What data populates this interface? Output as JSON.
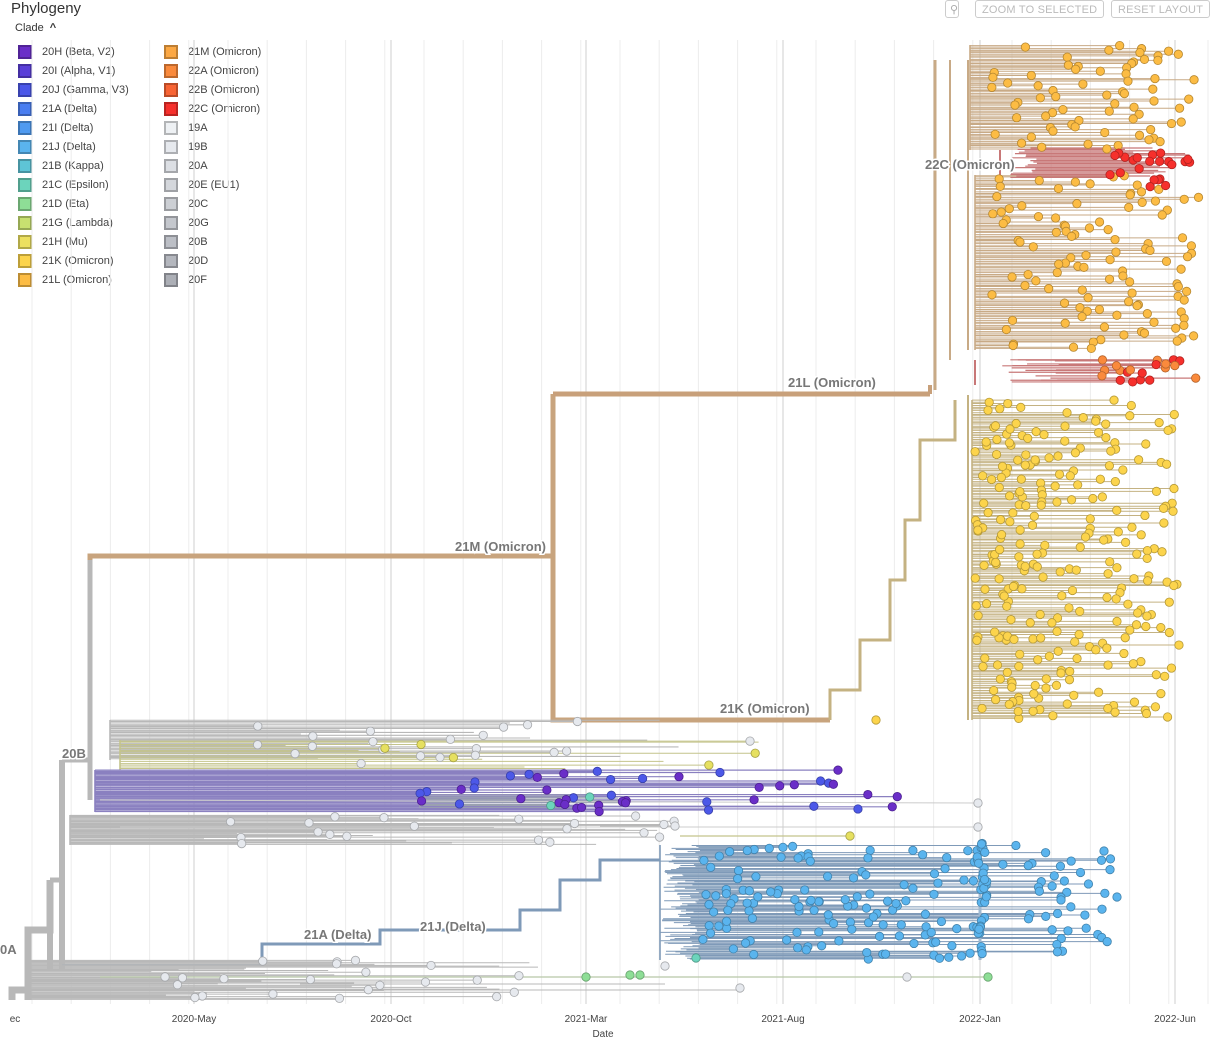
{
  "panel": {
    "title": "Phylogeny",
    "clade_toggle_label": "Clade"
  },
  "toolbar": {
    "zoom_icon": "magnifier-icon",
    "zoom_selected": "ZOOM TO SELECTED",
    "reset_layout": "RESET LAYOUT"
  },
  "legend": [
    {
      "label": "20H (Beta, V2)",
      "color": "#6a2ec8"
    },
    {
      "label": "20I (Alpha, V1)",
      "color": "#5a3fd8"
    },
    {
      "label": "20J (Gamma, V3)",
      "color": "#4c58e8"
    },
    {
      "label": "21A (Delta)",
      "color": "#4a7ef0"
    },
    {
      "label": "21I (Delta)",
      "color": "#4f9af0"
    },
    {
      "label": "21J (Delta)",
      "color": "#5ab4ee"
    },
    {
      "label": "21B (Kappa)",
      "color": "#5ec4d6"
    },
    {
      "label": "21C (Epsilon)",
      "color": "#6cd4bc"
    },
    {
      "label": "21D (Eta)",
      "color": "#8ede96"
    },
    {
      "label": "21G (Lambda)",
      "color": "#c8e070"
    },
    {
      "label": "21H (Mu)",
      "color": "#ece060"
    },
    {
      "label": "21K (Omicron)",
      "color": "#fcd44c"
    },
    {
      "label": "21L (Omicron)",
      "color": "#fcbc44"
    },
    {
      "label": "21M (Omicron)",
      "color": "#fca844"
    },
    {
      "label": "22A (Omicron)",
      "color": "#fa8a3c"
    },
    {
      "label": "22B (Omicron)",
      "color": "#f86434"
    },
    {
      "label": "22C (Omicron)",
      "color": "#f6302c"
    },
    {
      "label": "19A",
      "color": "#eef1f4"
    },
    {
      "label": "19B",
      "color": "#e6e9ee"
    },
    {
      "label": "20A",
      "color": "#dcdfe4"
    },
    {
      "label": "20E (EU1)",
      "color": "#d4d7dc"
    },
    {
      "label": "20C",
      "color": "#cccfd4"
    },
    {
      "label": "20G",
      "color": "#c4c7cd"
    },
    {
      "label": "20B",
      "color": "#bcbfc6"
    },
    {
      "label": "20D",
      "color": "#b4b7be"
    },
    {
      "label": "20F",
      "color": "#acafb6"
    }
  ],
  "tree": {
    "branch_labels": [
      "21M (Omicron)",
      "21L (Omicron)",
      "22C (Omicron)",
      "21K (Omicron)",
      "20B",
      "21A (Delta)",
      "21J (Delta)",
      "0A"
    ],
    "x_axis": {
      "label": "Date",
      "ticks": [
        "ec",
        "2020-May",
        "2020-Oct",
        "2021-Mar",
        "2021-Aug",
        "2022-Jan",
        "2022-Jun"
      ]
    },
    "colors": {
      "gray": "#b8b8b8",
      "omicron_stem": "#c8a47e",
      "omicron_21l": "#c8aa86",
      "omicron_21k": "#c4b282",
      "delta": "#7f9ab8",
      "purple": "#8a80c0",
      "yellow": "#fcd44c",
      "orange": "#fcbc44",
      "red": "#f6302c",
      "blue": "#5ab4ee",
      "darkblue": "#4c58e8",
      "violet": "#6a2ec8",
      "teal": "#6cd4bc",
      "lime": "#e6e060",
      "green": "#8ede96",
      "light": "#e6e9ee"
    }
  }
}
